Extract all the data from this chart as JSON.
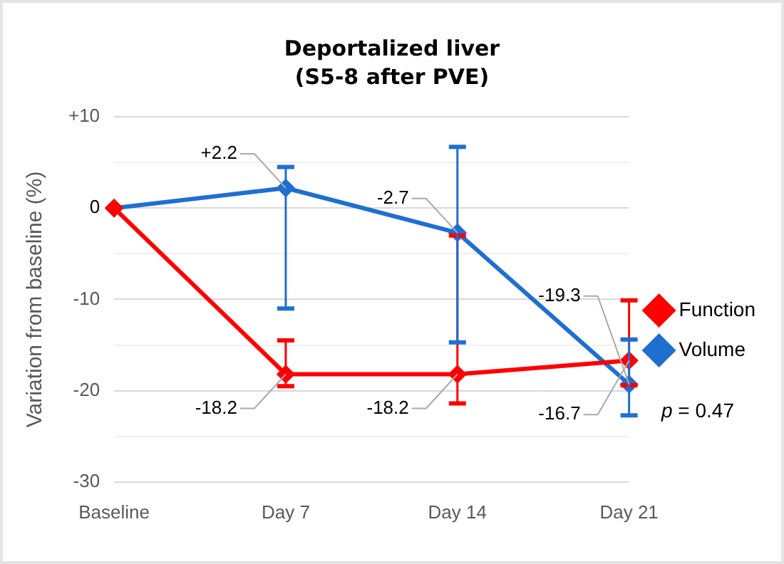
{
  "chart_data": {
    "type": "line",
    "title": "Deportalized liver\n(S5-8 after PVE)",
    "ylabel": "Variation from baseline (%)",
    "categories": [
      "Baseline",
      "Day 7",
      "Day 14",
      "Day 21"
    ],
    "series": [
      {
        "name": "Function",
        "color": "#ff0000",
        "values": [
          0,
          -18.2,
          -18.2,
          -16.7
        ],
        "value_labels": [
          "0",
          "-18.2",
          "-18.2",
          "-16.7"
        ],
        "errors": [
          null,
          [
            -19.5,
            -14.5
          ],
          [
            -21.4,
            -3.0
          ],
          [
            -19.4,
            -10.1
          ]
        ]
      },
      {
        "name": "Volume",
        "color": "#1f6fd1",
        "values": [
          0,
          2.2,
          -2.7,
          -19.3
        ],
        "value_labels": [
          null,
          "+2.2",
          "-2.7",
          "-19.3"
        ],
        "errors": [
          null,
          [
            -11.0,
            4.5
          ],
          [
            -14.7,
            6.7
          ],
          [
            -22.7,
            -14.4
          ]
        ]
      }
    ],
    "ylim": [
      -30,
      10
    ],
    "yticks": [
      -30,
      {
        "value": -25,
        "label": null
      },
      -20,
      {
        "value": -15,
        "label": null
      },
      -10,
      {
        "value": -5,
        "label": null
      },
      0,
      {
        "value": 5,
        "label": null
      },
      {
        "value": 10,
        "label": "+10"
      }
    ],
    "grid": "y",
    "legend": "right",
    "marker": "diamond",
    "line_style": "solid",
    "annotations": [
      "p = 0.47"
    ]
  }
}
